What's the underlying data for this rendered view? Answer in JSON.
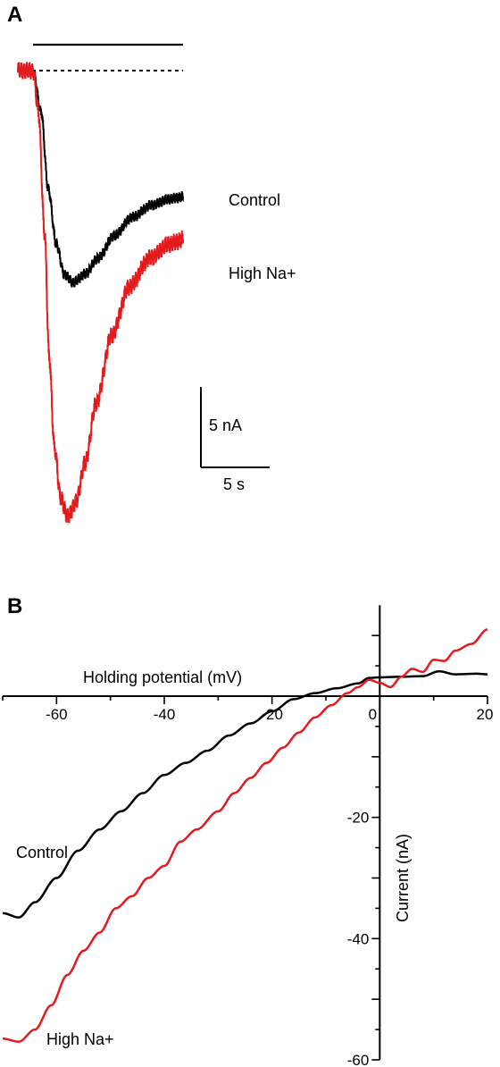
{
  "chart_data": [
    {
      "panel": "A",
      "type": "line",
      "series": [
        {
          "name": "Control",
          "color": "#000000",
          "points": [
            [
              0,
              0
            ],
            [
              1,
              0
            ],
            [
              1.7,
              0
            ],
            [
              2.6,
              -2.0
            ],
            [
              3.4,
              -5.8
            ],
            [
              4.3,
              -8.5
            ],
            [
              5.2,
              -10.0
            ],
            [
              6.2,
              -10.4
            ],
            [
              7.5,
              -10.0
            ],
            [
              9.0,
              -9.2
            ],
            [
              10.8,
              -8.1
            ],
            [
              12.8,
              -7.2
            ],
            [
              15.0,
              -6.6
            ],
            [
              17.0,
              -6.3
            ],
            [
              18.5,
              -6.2
            ]
          ]
        },
        {
          "name": "High Na+",
          "color": "#e41a1c",
          "points": [
            [
              0,
              0
            ],
            [
              1,
              0
            ],
            [
              1.7,
              0
            ],
            [
              2.3,
              -2.0
            ],
            [
              3.0,
              -8.0
            ],
            [
              3.5,
              -14.0
            ],
            [
              4.1,
              -18.5
            ],
            [
              4.8,
              -21.0
            ],
            [
              5.6,
              -21.9
            ],
            [
              6.5,
              -21.2
            ],
            [
              7.5,
              -19.3
            ],
            [
              8.8,
              -16.3
            ],
            [
              10.5,
              -13.0
            ],
            [
              12.5,
              -10.6
            ],
            [
              14.8,
              -9.2
            ],
            [
              17.0,
              -8.5
            ],
            [
              18.5,
              -8.3
            ]
          ]
        }
      ],
      "stimulus_bar": {
        "x_start": 1.7,
        "x_end": 18.5
      },
      "baseline": 0,
      "scale_bar": {
        "current_label": "5 nA",
        "current_value": 5,
        "time_label": "5 s",
        "time_value": 5
      },
      "xlim": [
        0,
        24
      ],
      "ylim": [
        -23,
        2.7
      ]
    },
    {
      "panel": "B",
      "type": "line",
      "xlabel": "Holding potential (mV)",
      "ylabel": "Current (nA)",
      "xticks": [
        -60,
        -40,
        -20,
        0,
        20
      ],
      "yticks": [
        -20,
        -40,
        -60
      ],
      "xlim": [
        -70,
        20
      ],
      "ylim": [
        -60,
        8
      ],
      "series": [
        {
          "name": "Control",
          "color": "#000000",
          "points": [
            [
              -70,
              -35.8
            ],
            [
              -67,
              -36.5
            ],
            [
              -64,
              -34
            ],
            [
              -60,
              -30
            ],
            [
              -56,
              -25.5
            ],
            [
              -52,
              -22
            ],
            [
              -48,
              -19
            ],
            [
              -44,
              -16
            ],
            [
              -40,
              -13
            ],
            [
              -36,
              -11
            ],
            [
              -32,
              -9
            ],
            [
              -28,
              -6.5
            ],
            [
              -24,
              -4.5
            ],
            [
              -20,
              -2.5
            ],
            [
              -16,
              -0.5
            ],
            [
              -12,
              0.5
            ],
            [
              -8,
              1.3
            ],
            [
              -4,
              2.1
            ],
            [
              -2,
              3.0
            ],
            [
              0,
              3.1
            ],
            [
              4,
              3.2
            ],
            [
              8,
              3.3
            ],
            [
              11,
              4.1
            ],
            [
              14,
              3.6
            ],
            [
              18,
              3.7
            ],
            [
              20,
              3.6
            ]
          ]
        },
        {
          "name": "High Na+",
          "color": "#e41a1c",
          "points": [
            [
              -70,
              -56.5
            ],
            [
              -67,
              -57
            ],
            [
              -64,
              -55
            ],
            [
              -61,
              -51
            ],
            [
              -58,
              -46
            ],
            [
              -55,
              -42
            ],
            [
              -52,
              -39
            ],
            [
              -49,
              -35
            ],
            [
              -46,
              -33
            ],
            [
              -43,
              -30
            ],
            [
              -40,
              -28
            ],
            [
              -37,
              -24
            ],
            [
              -34,
              -22
            ],
            [
              -30,
              -19
            ],
            [
              -27,
              -16
            ],
            [
              -24,
              -13.5
            ],
            [
              -21,
              -11
            ],
            [
              -18,
              -8.5
            ],
            [
              -15,
              -6
            ],
            [
              -12,
              -3.5
            ],
            [
              -9,
              -1.5
            ],
            [
              -6,
              0.5
            ],
            [
              -4,
              1.5
            ],
            [
              -2,
              2.7
            ],
            [
              0,
              2.2
            ],
            [
              2,
              1.5
            ],
            [
              4,
              3.2
            ],
            [
              6,
              4.5
            ],
            [
              8,
              4.0
            ],
            [
              10,
              6.0
            ],
            [
              12,
              5.8
            ],
            [
              14,
              7.5
            ],
            [
              17,
              8.6
            ],
            [
              20,
              11.0
            ]
          ]
        }
      ]
    }
  ],
  "panelA": {
    "letter": "A",
    "control_label": "Control",
    "highna_label": "High Na+",
    "scale_current": "5 nA",
    "scale_time": "5 s"
  },
  "panelB": {
    "letter": "B",
    "xlabel": "Holding potential (mV)",
    "ylabel": "Current (nA)",
    "control_label": "Control",
    "highna_label": "High Na+"
  }
}
